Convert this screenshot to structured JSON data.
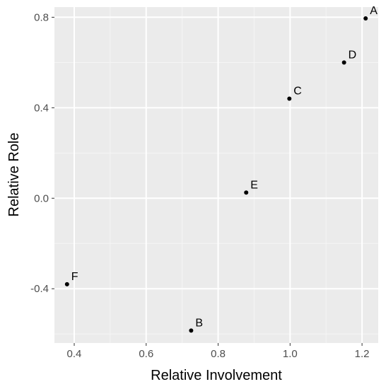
{
  "chart_data": {
    "type": "scatter",
    "title": "",
    "xlabel": "Relative Involvement",
    "ylabel": "Relative Role",
    "xlim": [
      0.345,
      1.245
    ],
    "ylim": [
      -0.64,
      0.845
    ],
    "x_major_ticks": [
      0.4,
      0.6,
      0.8,
      1.0,
      1.2
    ],
    "x_tick_labels": [
      "0.4",
      "0.6",
      "0.8",
      "1.0",
      "1.2"
    ],
    "x_minor_ticks": [
      0.5,
      0.7,
      0.9,
      1.1
    ],
    "y_major_ticks": [
      -0.4,
      0.0,
      0.4,
      0.8
    ],
    "y_tick_labels": [
      "-0.4",
      "0.0",
      "0.4",
      "0.8"
    ],
    "y_minor_ticks": [
      -0.6,
      -0.2,
      0.2,
      0.6
    ],
    "grid": true,
    "points": [
      {
        "label": "A",
        "x": 1.21,
        "y": 0.795
      },
      {
        "label": "B",
        "x": 0.725,
        "y": -0.585
      },
      {
        "label": "C",
        "x": 0.998,
        "y": 0.44
      },
      {
        "label": "D",
        "x": 1.15,
        "y": 0.6
      },
      {
        "label": "E",
        "x": 0.878,
        "y": 0.025
      },
      {
        "label": "F",
        "x": 0.38,
        "y": -0.38
      }
    ],
    "colors": {
      "panel_background": "#ebebeb",
      "grid_major": "#ffffff",
      "grid_minor": "#f5f5f5",
      "point": "#000000"
    }
  }
}
